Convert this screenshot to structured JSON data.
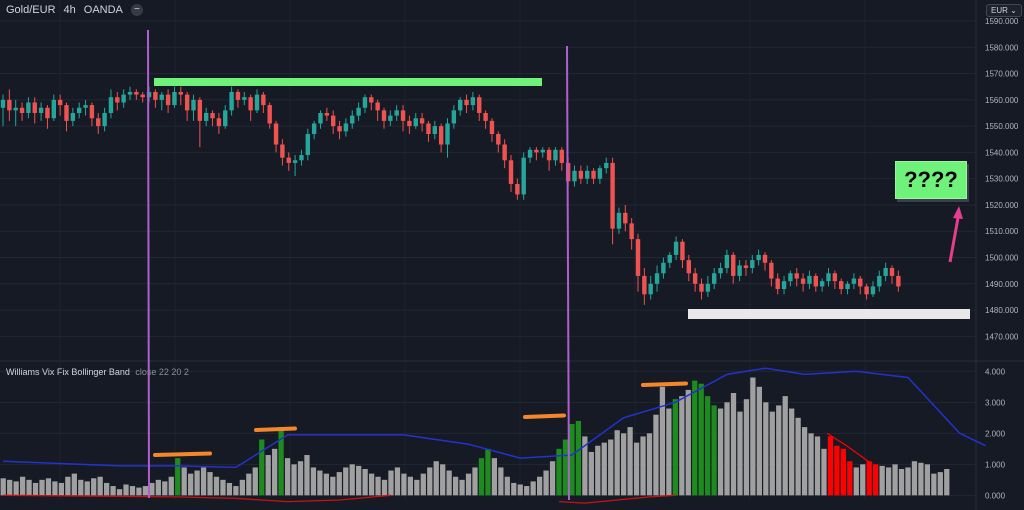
{
  "header": {
    "symbol": "Gold/EUR",
    "interval": "4h",
    "source": "OANDA"
  },
  "currency": "EUR",
  "question_box": "????",
  "indicator": {
    "name": "Williams Vix Fix Bollinger Band",
    "params": "close 22 20 2"
  },
  "colors": {
    "background": "#161a25",
    "up_candle": "#26a69a",
    "down_candle": "#ef5350",
    "green_bar": "#6ff27a",
    "white_bar": "#e8e8e8",
    "vertical_line": "#b05fd0",
    "arrow": "#e63d8f",
    "hist_gray": "#a0a0a0",
    "hist_green": "#1e8b1e",
    "hist_red": "#ff0000",
    "upper_band": "#2233cc",
    "lower_band": "#cc1111",
    "orange_mark": "#f5872a"
  },
  "chart_data": [
    {
      "type": "candlestick",
      "title": "Gold/EUR · 4h · OANDA",
      "ylabel": "EUR",
      "ylim": [
        1461,
        1598
      ],
      "yticks": [
        1470,
        1480,
        1490,
        1500,
        1510,
        1520,
        1530,
        1540,
        1550,
        1560,
        1570,
        1580,
        1590
      ],
      "grid": true,
      "candles": [
        [
          1557,
          1560,
          1550,
          1562
        ],
        [
          1560,
          1556,
          1552,
          1564
        ],
        [
          1556,
          1557,
          1550,
          1560
        ],
        [
          1557,
          1555,
          1552,
          1559
        ],
        [
          1555,
          1559,
          1553,
          1561
        ],
        [
          1559,
          1555,
          1551,
          1561
        ],
        [
          1555,
          1557,
          1552,
          1559
        ],
        [
          1557,
          1553,
          1549,
          1558
        ],
        [
          1553,
          1560,
          1552,
          1562
        ],
        [
          1560,
          1558,
          1554,
          1562
        ],
        [
          1558,
          1552,
          1548,
          1559
        ],
        [
          1552,
          1555,
          1550,
          1557
        ],
        [
          1555,
          1557,
          1553,
          1559
        ],
        [
          1557,
          1558,
          1554,
          1560
        ],
        [
          1558,
          1553,
          1550,
          1559
        ],
        [
          1553,
          1550,
          1547,
          1555
        ],
        [
          1550,
          1555,
          1548,
          1557
        ],
        [
          1555,
          1561,
          1553,
          1564
        ],
        [
          1561,
          1559,
          1556,
          1563
        ],
        [
          1559,
          1562,
          1557,
          1564
        ],
        [
          1562,
          1563,
          1560,
          1565
        ],
        [
          1563,
          1562,
          1560,
          1564
        ],
        [
          1562,
          1561,
          1559,
          1563
        ],
        [
          1561,
          1563,
          1559,
          1565
        ],
        [
          1563,
          1560,
          1557,
          1564
        ],
        [
          1560,
          1562,
          1556,
          1563
        ],
        [
          1562,
          1558,
          1555,
          1564
        ],
        [
          1558,
          1563,
          1557,
          1565
        ],
        [
          1563,
          1562,
          1558,
          1565
        ],
        [
          1562,
          1556,
          1552,
          1563
        ],
        [
          1556,
          1560,
          1552,
          1562
        ],
        [
          1560,
          1552,
          1542,
          1561
        ],
        [
          1552,
          1555,
          1550,
          1557
        ],
        [
          1555,
          1553,
          1550,
          1556
        ],
        [
          1553,
          1550,
          1547,
          1555
        ],
        [
          1550,
          1556,
          1549,
          1558
        ],
        [
          1556,
          1563,
          1554,
          1565
        ],
        [
          1563,
          1560,
          1557,
          1564
        ],
        [
          1560,
          1561,
          1558,
          1563
        ],
        [
          1561,
          1556,
          1552,
          1562
        ],
        [
          1556,
          1562,
          1555,
          1564
        ],
        [
          1562,
          1558,
          1555,
          1563
        ],
        [
          1558,
          1551,
          1549,
          1559
        ],
        [
          1551,
          1543,
          1540,
          1552
        ],
        [
          1543,
          1538,
          1535,
          1545
        ],
        [
          1538,
          1536,
          1533,
          1540
        ],
        [
          1536,
          1537,
          1531,
          1539
        ],
        [
          1537,
          1539,
          1535,
          1541
        ],
        [
          1539,
          1547,
          1537,
          1549
        ],
        [
          1547,
          1551,
          1545,
          1552
        ],
        [
          1551,
          1555,
          1549,
          1556
        ],
        [
          1555,
          1554,
          1552,
          1557
        ],
        [
          1554,
          1550,
          1547,
          1556
        ],
        [
          1550,
          1548,
          1545,
          1552
        ],
        [
          1548,
          1551,
          1546,
          1553
        ],
        [
          1551,
          1554,
          1549,
          1556
        ],
        [
          1554,
          1557,
          1552,
          1559
        ],
        [
          1557,
          1561,
          1555,
          1562
        ],
        [
          1561,
          1559,
          1556,
          1562
        ],
        [
          1559,
          1556,
          1552,
          1560
        ],
        [
          1556,
          1552,
          1549,
          1557
        ],
        [
          1552,
          1554,
          1550,
          1556
        ],
        [
          1554,
          1556,
          1552,
          1558
        ],
        [
          1556,
          1552,
          1548,
          1558
        ],
        [
          1552,
          1550,
          1547,
          1554
        ],
        [
          1550,
          1553,
          1549,
          1555
        ],
        [
          1553,
          1551,
          1548,
          1555
        ],
        [
          1551,
          1547,
          1544,
          1552
        ],
        [
          1547,
          1550,
          1545,
          1552
        ],
        [
          1550,
          1543,
          1540,
          1551
        ],
        [
          1543,
          1551,
          1538,
          1553
        ],
        [
          1551,
          1556,
          1549,
          1558
        ],
        [
          1556,
          1560,
          1554,
          1561
        ],
        [
          1560,
          1558,
          1555,
          1562
        ],
        [
          1558,
          1561,
          1556,
          1563
        ],
        [
          1561,
          1555,
          1552,
          1562
        ],
        [
          1555,
          1552,
          1549,
          1556
        ],
        [
          1552,
          1547,
          1544,
          1553
        ],
        [
          1547,
          1543,
          1540,
          1548
        ],
        [
          1543,
          1537,
          1534,
          1545
        ],
        [
          1537,
          1528,
          1525,
          1539
        ],
        [
          1528,
          1524,
          1522,
          1530
        ],
        [
          1524,
          1538,
          1522,
          1540
        ],
        [
          1538,
          1541,
          1536,
          1542
        ],
        [
          1541,
          1540,
          1537,
          1542
        ],
        [
          1540,
          1541,
          1538,
          1542
        ],
        [
          1541,
          1537,
          1533,
          1542
        ],
        [
          1537,
          1541,
          1535,
          1542
        ],
        [
          1541,
          1536,
          1533,
          1542
        ],
        [
          1536,
          1529,
          1527,
          1538
        ],
        [
          1529,
          1533,
          1527,
          1535
        ],
        [
          1533,
          1530,
          1528,
          1535
        ],
        [
          1530,
          1533,
          1528,
          1535
        ],
        [
          1533,
          1530,
          1528,
          1534
        ],
        [
          1530,
          1534,
          1528,
          1535
        ],
        [
          1534,
          1536,
          1532,
          1538
        ],
        [
          1536,
          1511,
          1505,
          1538
        ],
        [
          1511,
          1517,
          1509,
          1519
        ],
        [
          1517,
          1513,
          1510,
          1520
        ],
        [
          1513,
          1507,
          1503,
          1515
        ],
        [
          1507,
          1493,
          1487,
          1509
        ],
        [
          1493,
          1486,
          1482,
          1496
        ],
        [
          1486,
          1490,
          1484,
          1493
        ],
        [
          1490,
          1494,
          1487,
          1497
        ],
        [
          1494,
          1498,
          1492,
          1500
        ],
        [
          1498,
          1501,
          1496,
          1502
        ],
        [
          1501,
          1506,
          1499,
          1508
        ],
        [
          1506,
          1499,
          1496,
          1507
        ],
        [
          1499,
          1494,
          1491,
          1501
        ],
        [
          1494,
          1490,
          1487,
          1496
        ],
        [
          1490,
          1487,
          1484,
          1492
        ],
        [
          1487,
          1490,
          1485,
          1493
        ],
        [
          1490,
          1494,
          1488,
          1496
        ],
        [
          1494,
          1496,
          1492,
          1498
        ],
        [
          1496,
          1501,
          1494,
          1503
        ],
        [
          1501,
          1493,
          1490,
          1502
        ],
        [
          1493,
          1497,
          1491,
          1499
        ],
        [
          1497,
          1496,
          1493,
          1499
        ],
        [
          1496,
          1499,
          1494,
          1501
        ],
        [
          1499,
          1501,
          1497,
          1503
        ],
        [
          1501,
          1498,
          1495,
          1502
        ],
        [
          1498,
          1492,
          1489,
          1499
        ],
        [
          1492,
          1488,
          1486,
          1494
        ],
        [
          1488,
          1491,
          1486,
          1493
        ],
        [
          1491,
          1494,
          1489,
          1495
        ],
        [
          1494,
          1492,
          1489,
          1496
        ],
        [
          1492,
          1490,
          1487,
          1494
        ],
        [
          1490,
          1493,
          1488,
          1495
        ],
        [
          1493,
          1489,
          1487,
          1494
        ],
        [
          1489,
          1491,
          1487,
          1492
        ],
        [
          1491,
          1494,
          1489,
          1496
        ],
        [
          1494,
          1491,
          1488,
          1495
        ],
        [
          1491,
          1488,
          1486,
          1492
        ],
        [
          1488,
          1490,
          1486,
          1491
        ],
        [
          1490,
          1492,
          1488,
          1494
        ],
        [
          1492,
          1489,
          1486,
          1493
        ],
        [
          1489,
          1486,
          1484,
          1490
        ],
        [
          1486,
          1489,
          1485,
          1491
        ],
        [
          1489,
          1493,
          1487,
          1495
        ],
        [
          1493,
          1496,
          1491,
          1498
        ],
        [
          1496,
          1493,
          1490,
          1497
        ],
        [
          1493,
          1489,
          1487,
          1495
        ]
      ]
    },
    {
      "type": "bar",
      "title": "Williams Vix Fix Bollinger Band close 22 20 2",
      "ylim": [
        -0.15,
        4.3
      ],
      "yticks": [
        0,
        1,
        2,
        3,
        4
      ],
      "grid": true,
      "series_values": [
        0.55,
        0.5,
        0.45,
        0.6,
        0.5,
        0.4,
        0.5,
        0.55,
        0.45,
        0.4,
        0.6,
        0.7,
        0.5,
        0.45,
        0.55,
        0.6,
        0.4,
        0.3,
        0.2,
        0.35,
        0.3,
        0.25,
        0.3,
        0.4,
        0.5,
        0.45,
        0.6,
        1.2,
        0.9,
        0.7,
        0.8,
        0.9,
        0.75,
        0.6,
        0.5,
        0.4,
        0.3,
        0.5,
        0.7,
        0.9,
        1.8,
        1.3,
        1.5,
        2.2,
        1.2,
        1.0,
        1.1,
        1.3,
        0.9,
        0.8,
        0.7,
        0.6,
        0.75,
        0.9,
        1.0,
        0.95,
        0.85,
        0.7,
        0.6,
        0.5,
        0.8,
        0.9,
        0.7,
        0.6,
        0.5,
        0.7,
        0.9,
        1.1,
        1.0,
        0.8,
        0.6,
        0.5,
        0.7,
        0.9,
        1.2,
        1.5,
        1.2,
        0.9,
        0.6,
        0.4,
        0.35,
        0.3,
        0.45,
        0.6,
        0.8,
        1.1,
        1.5,
        1.8,
        2.3,
        2.4,
        1.9,
        1.4,
        1.6,
        1.7,
        1.8,
        2.1,
        2.0,
        2.2,
        1.7,
        1.9,
        2.0,
        2.6,
        3.5,
        2.8,
        3.1,
        3.2,
        3.4,
        3.7,
        3.6,
        3.2,
        2.9,
        2.8,
        3.0,
        3.3,
        2.7,
        3.1,
        3.8,
        3.5,
        3.0,
        2.7,
        2.9,
        3.2,
        2.8,
        2.5,
        2.2,
        2.0,
        1.9,
        1.5,
        1.9,
        1.6,
        1.5,
        1.1,
        0.9,
        1.0,
        1.1,
        1.0,
        0.95,
        0.9,
        1.0,
        0.85,
        0.9,
        1.1,
        1.05,
        1.0,
        0.7,
        0.75,
        0.85
      ],
      "green_indices": [
        27,
        40,
        43,
        74,
        75,
        86,
        87,
        88,
        89,
        104,
        107,
        108,
        109,
        110
      ],
      "red_indices": [
        128,
        129,
        130,
        131,
        134,
        135
      ],
      "upper_band": [
        [
          0,
          1.1
        ],
        [
          18,
          0.95
        ],
        [
          27,
          0.95
        ],
        [
          36,
          0.9
        ],
        [
          44,
          1.95
        ],
        [
          62,
          1.95
        ],
        [
          72,
          1.65
        ],
        [
          80,
          1.2
        ],
        [
          88,
          1.3
        ],
        [
          96,
          2.5
        ],
        [
          104,
          3.0
        ],
        [
          112,
          3.9
        ],
        [
          118,
          4.1
        ],
        [
          124,
          3.9
        ],
        [
          132,
          4.0
        ],
        [
          140,
          3.8
        ],
        [
          148,
          2.0
        ],
        [
          152,
          1.6
        ]
      ],
      "lower_band": [
        [
          0,
          0.0
        ],
        [
          27,
          -0.05
        ],
        [
          36,
          -0.1
        ],
        [
          44,
          -0.2
        ],
        [
          52,
          -0.15
        ],
        [
          60,
          0.0
        ]
      ],
      "lower_band_2": [
        [
          86,
          -0.2
        ],
        [
          90,
          -0.25
        ],
        [
          95,
          -0.15
        ],
        [
          100,
          -0.05
        ],
        [
          104,
          0.0
        ]
      ]
    }
  ]
}
